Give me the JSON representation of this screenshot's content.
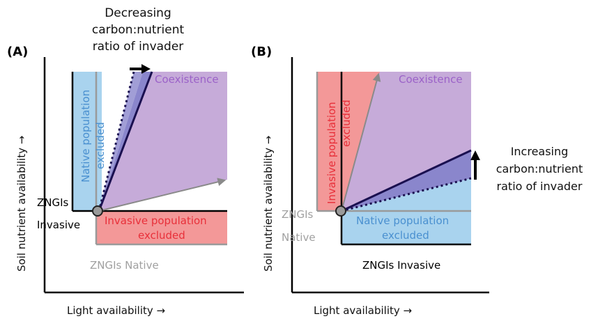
{
  "panel_a": {
    "label": "(A)",
    "top_annotation": [
      "Decreasing",
      "carbon:nutrient",
      "ratio of invader"
    ],
    "region_native_excluded": [
      "Native population",
      "excluded"
    ],
    "region_coexistence": "Coexistence",
    "region_invasive_excluded": [
      "Invasive population",
      "excluded"
    ],
    "zngi_invasive": [
      "ZNGIs",
      "Invasive"
    ],
    "zngi_native": "ZNGIs Native",
    "y_axis_label": "Soil nutrient availability →",
    "x_axis_label": "Light availability →"
  },
  "panel_b": {
    "label": "(B)",
    "right_annotation": [
      "Increasing",
      "carbon:nutrient",
      "ratio of invader"
    ],
    "region_invasive_excluded": [
      "Invasive population",
      "excluded"
    ],
    "region_coexistence": "Coexistence",
    "region_native_excluded": [
      "Native population",
      "excluded"
    ],
    "zngi_native": [
      "ZNGIs",
      "Native"
    ],
    "zngi_invasive": "ZNGIs Invasive",
    "y_axis_label": "Soil nutrient availability →",
    "x_axis_label": "Light availability →"
  },
  "colors": {
    "blue": "#a9d3ee",
    "purple": "#c6abd9",
    "red": "#f39898",
    "dark_purple": "#8a86cc",
    "coexistence_text": "#9b62c8",
    "native_text": "#4a90d0",
    "invasive_text": "#e8303a",
    "gray_text": "#a0a0a0"
  }
}
